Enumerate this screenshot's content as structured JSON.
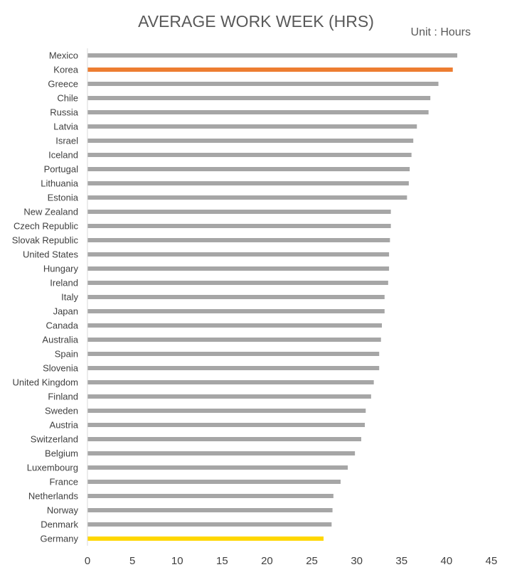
{
  "chart_data": {
    "type": "bar",
    "orientation": "horizontal",
    "title": "AVERAGE WORK WEEK (HRS)",
    "unit_label": "Unit : Hours",
    "xlim": [
      0,
      45
    ],
    "x_ticks": [
      0,
      5,
      10,
      15,
      20,
      25,
      30,
      35,
      40,
      45
    ],
    "grid": false,
    "categories": [
      "Mexico",
      "Korea",
      "Greece",
      "Chile",
      "Russia",
      "Latvia",
      "Israel",
      "Iceland",
      "Portugal",
      "Lithuania",
      "Estonia",
      "New Zealand",
      "Czech Republic",
      "Slovak Republic",
      "United States",
      "Hungary",
      "Ireland",
      "Italy",
      "Japan",
      "Canada",
      "Australia",
      "Spain",
      "Slovenia",
      "United Kingdom",
      "Finland",
      "Sweden",
      "Austria",
      "Switzerland",
      "Belgium",
      "Luxembourg",
      "France",
      "Netherlands",
      "Norway",
      "Denmark",
      "Germany"
    ],
    "values": [
      41.2,
      40.7,
      39.1,
      38.2,
      38.0,
      36.7,
      36.3,
      36.1,
      35.9,
      35.8,
      35.6,
      33.8,
      33.8,
      33.7,
      33.6,
      33.6,
      33.5,
      33.1,
      33.1,
      32.8,
      32.7,
      32.5,
      32.5,
      31.9,
      31.6,
      31.0,
      30.9,
      30.5,
      29.8,
      29.0,
      28.2,
      27.4,
      27.3,
      27.2,
      26.3
    ],
    "colors": {
      "default": "#a6a6a6",
      "highlight": {
        "Korea": "#ed7d31",
        "Germany": "#ffd700"
      },
      "axis": "#d9d9d9"
    }
  }
}
